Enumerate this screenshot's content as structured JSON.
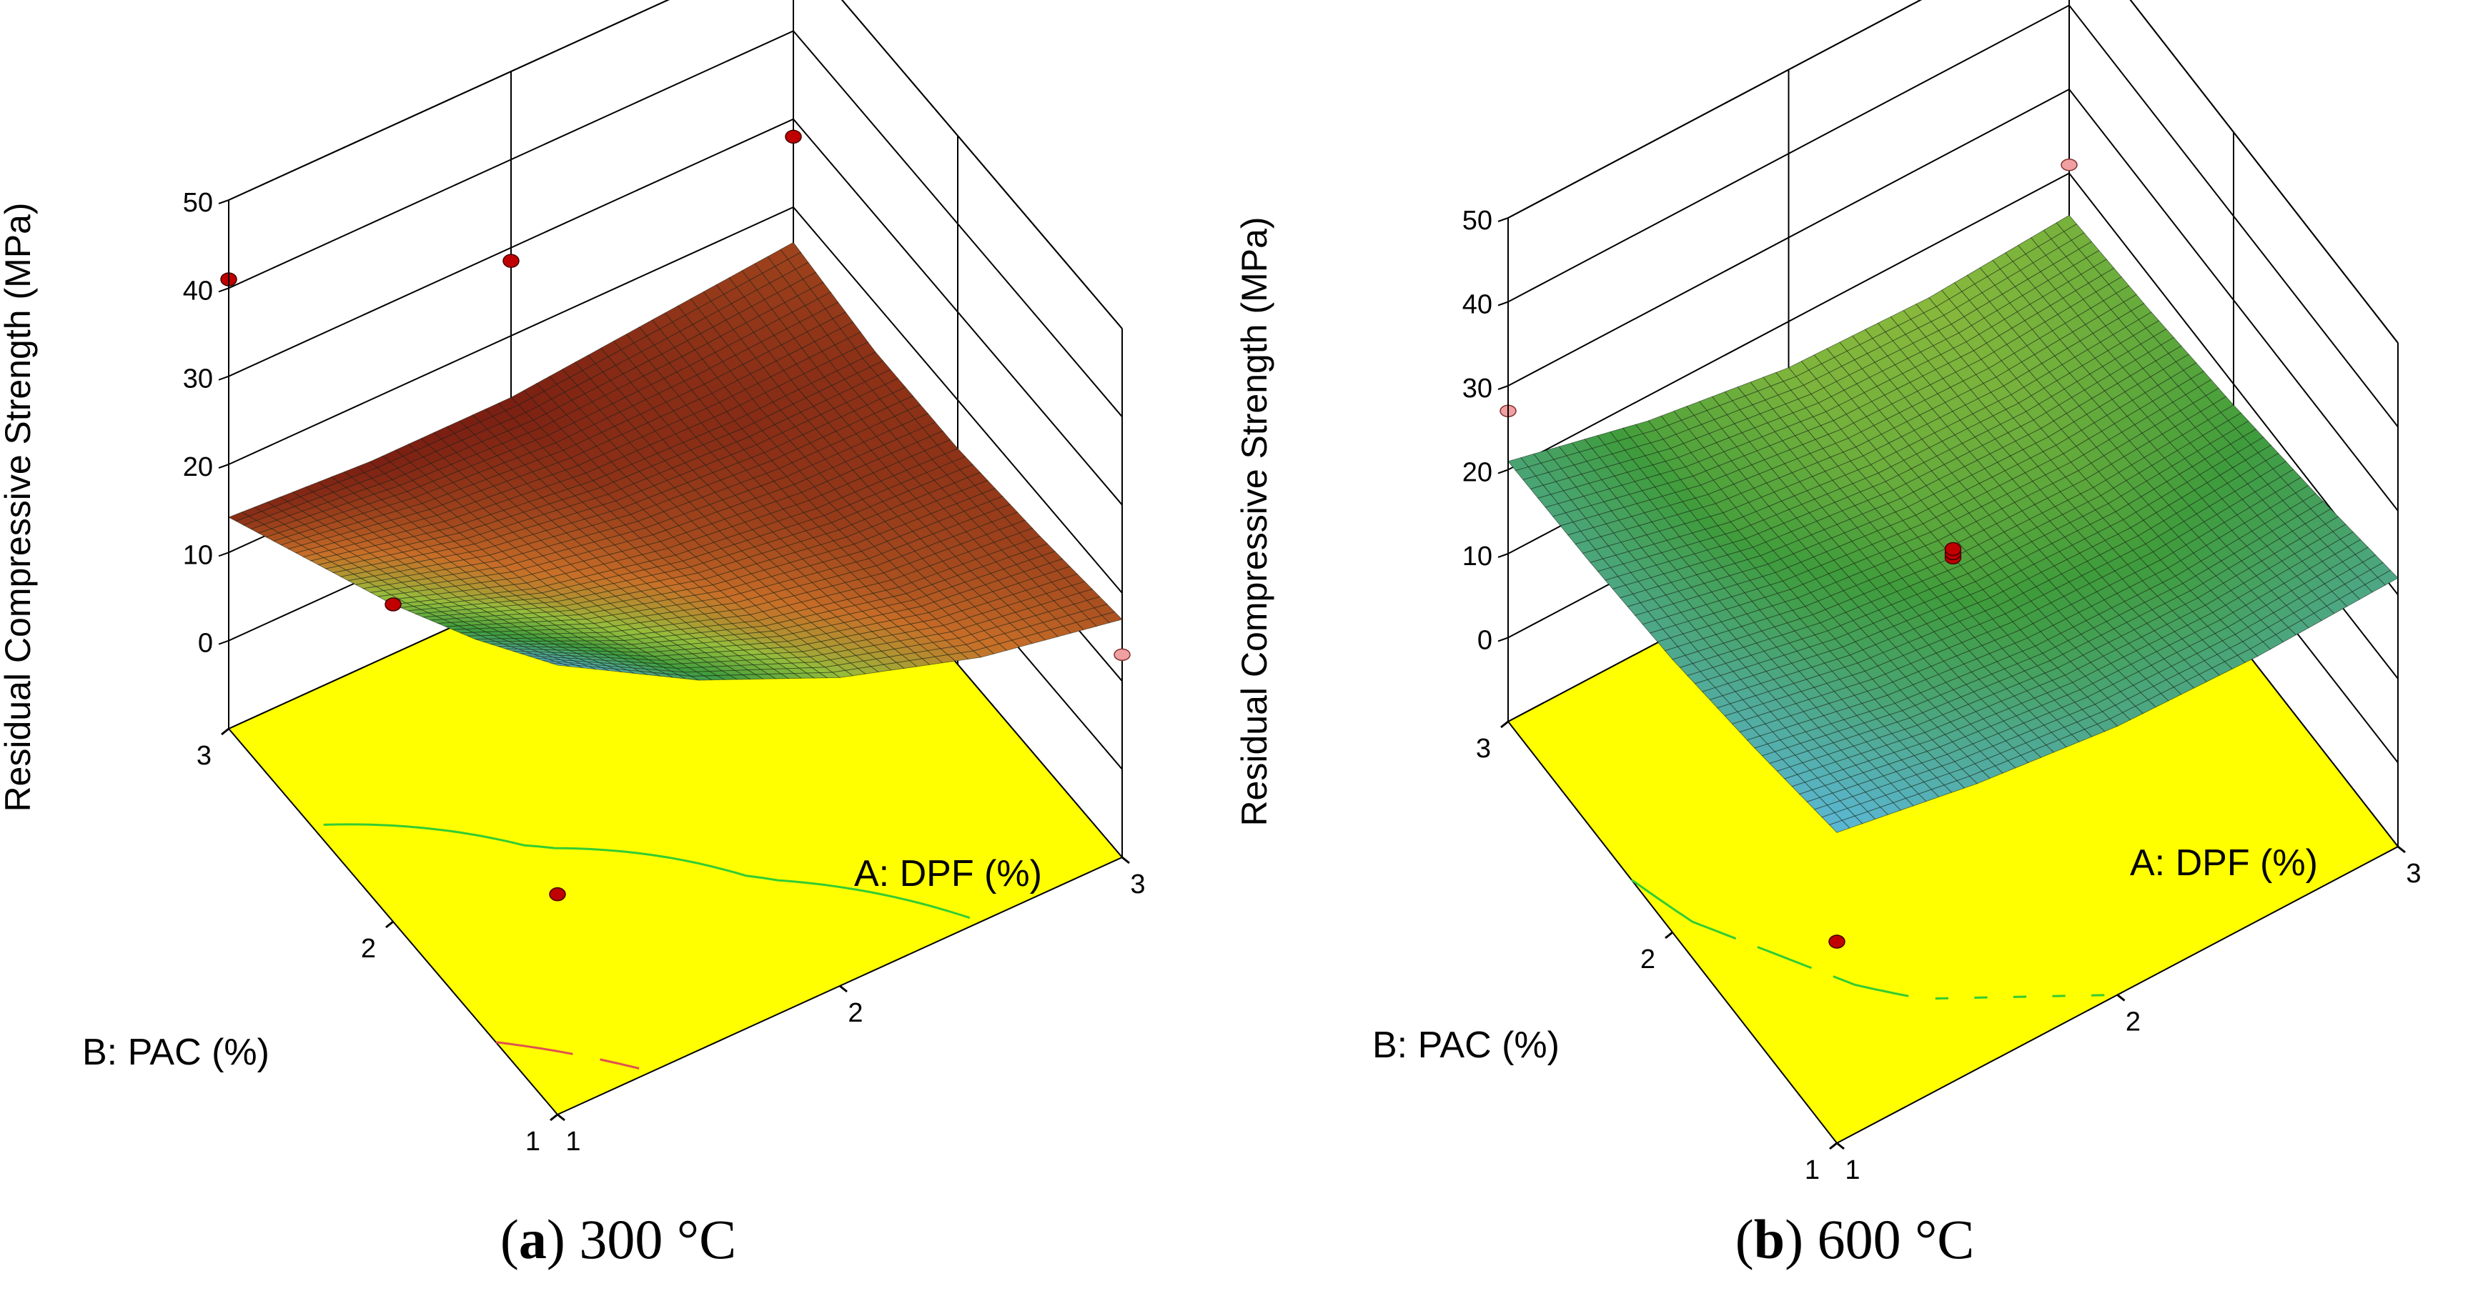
{
  "figure": {
    "panels": [
      {
        "id": "a",
        "caption_letter": "a",
        "caption_temp": "300 °C"
      },
      {
        "id": "b",
        "caption_letter": "b",
        "caption_temp": "600 °C"
      }
    ]
  },
  "colors": {
    "floor": "#ffff00",
    "surface_low": "#7a1e12",
    "surface_mid": "#3f9c3c",
    "surface_high": "#5bb8d6",
    "design_point": "#c00000",
    "design_point_below": "#f0a0a0",
    "contour_green": "#33cc33",
    "contour_red": "#e05050"
  },
  "chart_data": [
    {
      "type": "surface3d",
      "title": "(a) 300 °C",
      "zlabel": "Residual Compressive Strength (MPa)",
      "xlabel": "A: DPF (%)",
      "ylabel": "B: PAC (%)",
      "x_ticks": [
        "1",
        "2",
        "3"
      ],
      "y_ticks": [
        "1",
        "2",
        "3"
      ],
      "z_ticks": [
        "0",
        "10",
        "20",
        "30",
        "40",
        "50"
      ],
      "xlim": [
        1,
        3
      ],
      "ylim": [
        1,
        3
      ],
      "zlim": [
        -10,
        50
      ],
      "grid_x": [
        1,
        1.5,
        2,
        2.5,
        3
      ],
      "grid_y": [
        1,
        1.5,
        2,
        2.5,
        3
      ],
      "z_grid": [
        [
          41.0,
          32.0,
          25.0,
          20.0,
          17.0
        ],
        [
          33.0,
          26.0,
          20.5,
          17.0,
          15.5
        ],
        [
          26.0,
          20.5,
          17.0,
          15.0,
          14.5
        ],
        [
          20.0,
          16.5,
          14.5,
          14.0,
          14.5
        ],
        [
          14.0,
          13.0,
          13.0,
          14.5,
          16.0
        ]
      ],
      "design_points": [
        {
          "x": 1,
          "y": 3,
          "z": 41.0,
          "below": false
        },
        {
          "x": 1,
          "y": 2,
          "z": 26.0,
          "below": false
        },
        {
          "x": 1,
          "y": 1,
          "z": 15.0,
          "below": false
        },
        {
          "x": 2,
          "y": 3,
          "z": 28.5,
          "below": false
        },
        {
          "x": 3,
          "y": 3,
          "z": 28.0,
          "below": false
        },
        {
          "x": 3,
          "y": 1,
          "z": 13.0,
          "below": true
        }
      ]
    },
    {
      "type": "surface3d",
      "title": "(b) 600 °C",
      "zlabel": "Residual Compressive Strength (MPa)",
      "xlabel": "A: DPF (%)",
      "ylabel": "B: PAC (%)",
      "x_ticks": [
        "1",
        "2",
        "3"
      ],
      "y_ticks": [
        "1",
        "2",
        "3"
      ],
      "z_ticks": [
        "0",
        "10",
        "20",
        "30",
        "40",
        "50"
      ],
      "xlim": [
        1,
        3
      ],
      "ylim": [
        1,
        3
      ],
      "zlim": [
        -10,
        50
      ],
      "grid_x": [
        1,
        1.5,
        2,
        2.5,
        3
      ],
      "grid_y": [
        1,
        1.5,
        2,
        2.5,
        3
      ],
      "z_grid": [
        [
          27.0,
          24.0,
          22.0,
          21.5,
          22.0
        ],
        [
          24.5,
          21.0,
          19.0,
          18.5,
          19.5
        ],
        [
          22.5,
          19.0,
          17.0,
          16.5,
          17.5
        ],
        [
          21.5,
          17.5,
          15.5,
          15.0,
          16.0
        ],
        [
          21.0,
          17.0,
          14.5,
          14.0,
          15.0
        ]
      ],
      "design_points": [
        {
          "x": 1,
          "y": 3,
          "z": 27.0,
          "below": true
        },
        {
          "x": 3,
          "y": 3,
          "z": 21.0,
          "below": true
        },
        {
          "x": 1,
          "y": 1,
          "z": 14.0,
          "below": false
        },
        {
          "x": 2,
          "y": 2,
          "z": 17.0,
          "below": false
        },
        {
          "x": 2,
          "y": 2,
          "z": 17.5,
          "below": false
        },
        {
          "x": 2,
          "y": 2,
          "z": 18.0,
          "below": false
        }
      ]
    }
  ]
}
